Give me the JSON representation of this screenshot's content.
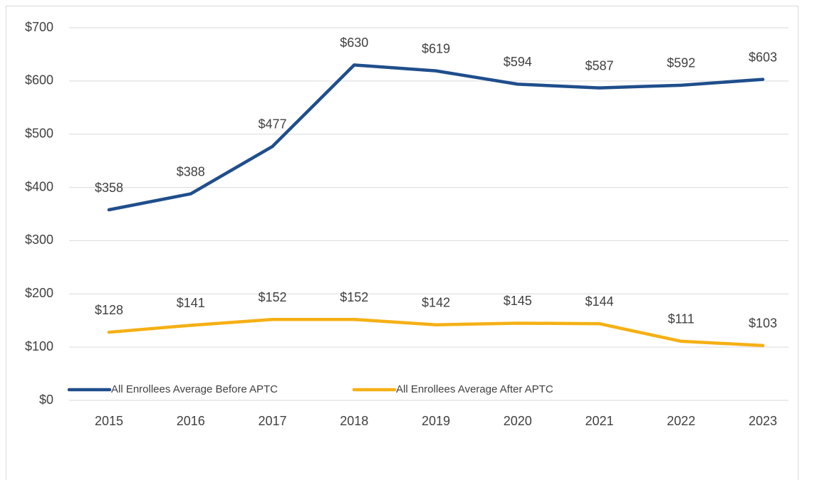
{
  "chart_data": {
    "type": "line",
    "categories": [
      "2015",
      "2016",
      "2017",
      "2018",
      "2019",
      "2020",
      "2021",
      "2022",
      "2023"
    ],
    "series": [
      {
        "name": "All Enrollees Average Before APTC",
        "color": "#1f4e8c",
        "values": [
          358,
          388,
          477,
          630,
          619,
          594,
          587,
          592,
          603
        ],
        "value_labels": [
          "$358",
          "$388",
          "$477",
          "$630",
          "$619",
          "$594",
          "$587",
          "$592",
          "$603"
        ]
      },
      {
        "name": "All Enrollees Average After APTC",
        "color": "#f5b014",
        "values": [
          128,
          141,
          152,
          152,
          142,
          145,
          144,
          111,
          103
        ],
        "value_labels": [
          "$128",
          "$141",
          "$152",
          "$152",
          "$142",
          "$145",
          "$144",
          "$111",
          "$103"
        ]
      }
    ],
    "ylim": [
      0,
      700
    ],
    "yticks": [
      {
        "value": 0,
        "label": "$0"
      },
      {
        "value": 100,
        "label": "$100"
      },
      {
        "value": 200,
        "label": "$200"
      },
      {
        "value": 300,
        "label": "$300"
      },
      {
        "value": 400,
        "label": "$400"
      },
      {
        "value": 500,
        "label": "$500"
      },
      {
        "value": 600,
        "label": "$600"
      },
      {
        "value": 700,
        "label": "$700"
      }
    ],
    "grid": true
  }
}
